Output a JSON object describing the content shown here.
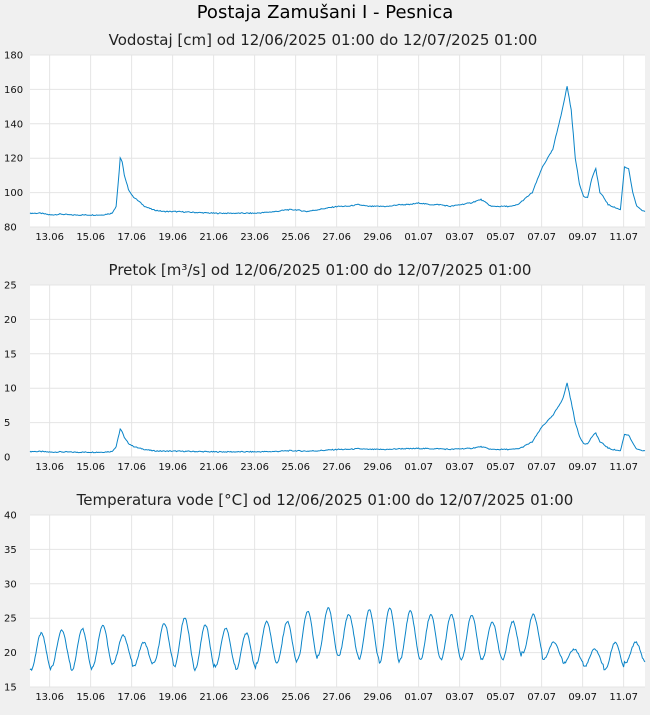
{
  "page_title": "Postaja Zamušani I - Pesnica",
  "chart_data": [
    {
      "type": "line",
      "title": "Vodostaj [cm] od 12/06/2025 01:00 do 12/07/2025 01:00",
      "ylim": [
        80,
        180
      ],
      "yticks": [
        "80",
        "100",
        "120",
        "140",
        "160",
        "180"
      ],
      "xticks": [
        "13.06",
        "15.06",
        "17.06",
        "19.06",
        "21.06",
        "23.06",
        "25.06",
        "27.06",
        "29.06",
        "01.07",
        "03.07",
        "05.07",
        "07.07",
        "09.07",
        "11.07"
      ],
      "grid": true,
      "color": "#0a84c8",
      "series": [
        {
          "x": [
            0,
            0.5,
            1,
            1.5,
            2,
            2.5,
            3,
            3.5,
            4,
            4.2,
            4.3,
            4.4,
            4.5,
            4.6,
            4.8,
            5,
            5.3,
            5.6,
            6,
            6.5,
            7,
            8,
            9,
            10,
            11,
            12,
            12.5,
            13,
            13.5,
            14,
            14.5,
            15,
            15.5,
            16,
            16.5,
            17,
            17.5,
            18,
            18.5,
            19,
            19.5,
            20,
            20.5,
            21,
            21.5,
            22,
            22.5,
            23,
            23.5,
            23.8,
            24,
            24.5,
            25,
            25.5,
            26,
            26.2,
            26.4,
            26.6,
            26.8,
            27,
            27.2,
            27.4,
            27.6,
            27.8,
            28,
            28.2,
            28.4,
            28.6,
            28.8,
            29,
            29.2,
            29.4,
            29.6,
            29.8,
            30
          ],
          "values": [
            88,
            88,
            87,
            87.5,
            87,
            87,
            87,
            87,
            88,
            92,
            105,
            120,
            118,
            110,
            102,
            98,
            95,
            92,
            90,
            89,
            89,
            88.5,
            88,
            88,
            88,
            89,
            90,
            90,
            89,
            90,
            91,
            92,
            92,
            93,
            92,
            92,
            92,
            93,
            93,
            94,
            93,
            93,
            92,
            93,
            94,
            96,
            92,
            92,
            92,
            93,
            95,
            100,
            115,
            125,
            150,
            162,
            148,
            120,
            105,
            98,
            97,
            108,
            114,
            100,
            97,
            93,
            92,
            91,
            90,
            115,
            114,
            100,
            92,
            90,
            89
          ]
        }
      ]
    },
    {
      "type": "line",
      "title": "Pretok [m³/s] od 12/06/2025 01:00 do 12/07/2025 01:00",
      "ylim": [
        0,
        25
      ],
      "yticks": [
        "0",
        "5",
        "10",
        "15",
        "20",
        "25"
      ],
      "xticks": [
        "13.06",
        "15.06",
        "17.06",
        "19.06",
        "21.06",
        "23.06",
        "25.06",
        "27.06",
        "29.06",
        "01.07",
        "03.07",
        "05.07",
        "07.07",
        "09.07",
        "11.07"
      ],
      "grid": true,
      "color": "#0a84c8",
      "series": [
        {
          "x": [
            0,
            0.5,
            1,
            1.5,
            2,
            2.5,
            3,
            3.5,
            4,
            4.2,
            4.3,
            4.4,
            4.5,
            4.6,
            4.8,
            5,
            5.3,
            5.6,
            6,
            6.5,
            7,
            8,
            9,
            10,
            11,
            12,
            12.5,
            13,
            13.5,
            14,
            14.5,
            15,
            15.5,
            16,
            16.5,
            17,
            17.5,
            18,
            18.5,
            19,
            19.5,
            20,
            20.5,
            21,
            21.5,
            22,
            22.5,
            23,
            23.5,
            23.8,
            24,
            24.5,
            25,
            25.5,
            26,
            26.2,
            26.4,
            26.6,
            26.8,
            27,
            27.2,
            27.4,
            27.6,
            27.8,
            28,
            28.2,
            28.4,
            28.6,
            28.8,
            29,
            29.2,
            29.4,
            29.6,
            29.8,
            30
          ],
          "values": [
            0.8,
            0.8,
            0.7,
            0.75,
            0.7,
            0.7,
            0.7,
            0.7,
            0.8,
            1.5,
            2.8,
            4,
            3.7,
            2.8,
            2,
            1.6,
            1.3,
            1.1,
            0.9,
            0.85,
            0.85,
            0.8,
            0.75,
            0.75,
            0.75,
            0.8,
            0.9,
            0.9,
            0.85,
            0.9,
            1,
            1.1,
            1.1,
            1.2,
            1.1,
            1.1,
            1.1,
            1.2,
            1.2,
            1.25,
            1.2,
            1.2,
            1.1,
            1.2,
            1.25,
            1.5,
            1.1,
            1.1,
            1.1,
            1.2,
            1.4,
            2.2,
            4.5,
            6,
            8.5,
            10.8,
            8,
            5,
            3,
            2,
            1.9,
            2.9,
            3.5,
            2.2,
            1.8,
            1.3,
            1.1,
            1,
            0.9,
            3.3,
            3.2,
            2,
            1.1,
            0.95,
            0.9
          ]
        }
      ]
    },
    {
      "type": "line",
      "title": "Temperatura vode [°C] od 12/06/2025 01:00 do 12/07/2025 01:00",
      "ylim": [
        15,
        40
      ],
      "yticks": [
        "15",
        "20",
        "25",
        "30",
        "35",
        "40"
      ],
      "xticks": [
        "13.06",
        "15.06",
        "17.06",
        "19.06",
        "21.06",
        "23.06",
        "25.06",
        "27.06",
        "29.06",
        "01.07",
        "03.07",
        "05.07",
        "07.07",
        "09.07",
        "11.07"
      ],
      "grid": true,
      "color": "#0a84c8",
      "daily_min": [
        17.5,
        18,
        17.5,
        18,
        18.5,
        18,
        18.5,
        18,
        17.5,
        18,
        17.5,
        18.5,
        18.5,
        19,
        19.5,
        19.5,
        19,
        18.5,
        19,
        19,
        19,
        19,
        19,
        19,
        20,
        19,
        18.5,
        18,
        17.5,
        18.5
      ],
      "daily_max": [
        22.8,
        23.2,
        23.5,
        24,
        22.5,
        21.5,
        24.2,
        25,
        24,
        23.5,
        22.8,
        24.5,
        24.5,
        26,
        26.5,
        25.5,
        26.2,
        26.5,
        26,
        25.5,
        25.5,
        25.5,
        24.5,
        24.5,
        25.5,
        21.5,
        20.5,
        20.5,
        21.5,
        21.5
      ]
    }
  ]
}
